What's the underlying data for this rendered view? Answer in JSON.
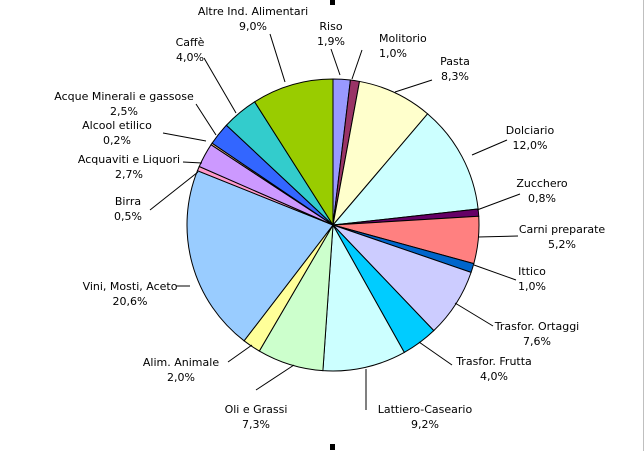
{
  "chart_data": {
    "type": "pie",
    "title": "",
    "start_angle_deg": 0,
    "direction": "clockwise",
    "slices": [
      {
        "label": "Riso",
        "value_label": "1,9%",
        "value": 1.9,
        "color": "#9999ff"
      },
      {
        "label": "Molitorio",
        "value_label": "1,0%",
        "value": 1.0,
        "color": "#993366"
      },
      {
        "label": "Pasta",
        "value_label": "8,3%",
        "value": 8.3,
        "color": "#ffffcc"
      },
      {
        "label": "Dolciario",
        "value_label": "12,0%",
        "value": 12.0,
        "color": "#ccffff"
      },
      {
        "label": "Zucchero",
        "value_label": "0,8%",
        "value": 0.8,
        "color": "#660066"
      },
      {
        "label": "Carni preparate",
        "value_label": "5,2%",
        "value": 5.2,
        "color": "#ff8080"
      },
      {
        "label": "Ittico",
        "value_label": "1,0%",
        "value": 1.0,
        "color": "#0066cc"
      },
      {
        "label": "Trasfor. Ortaggi",
        "value_label": "7,6%",
        "value": 7.6,
        "color": "#ccccff"
      },
      {
        "label": "Trasfor. Frutta",
        "value_label": "4,0%",
        "value": 4.0,
        "color": "#00ccff"
      },
      {
        "label": "Lattiero-Caseario",
        "value_label": "9,2%",
        "value": 9.2,
        "color": "#ccffff"
      },
      {
        "label": "Oli e Grassi",
        "value_label": "7,3%",
        "value": 7.3,
        "color": "#ccffcc"
      },
      {
        "label": "Alim. Animale",
        "value_label": "2,0%",
        "value": 2.0,
        "color": "#ffff99"
      },
      {
        "label": "Vini, Mosti, Aceto",
        "value_label": "20,6%",
        "value": 20.6,
        "color": "#99ccff"
      },
      {
        "label": "Birra",
        "value_label": "0,5%",
        "value": 0.5,
        "color": "#ff99cc"
      },
      {
        "label": "Acquaviti e Liquori",
        "value_label": "2,7%",
        "value": 2.7,
        "color": "#cc99ff"
      },
      {
        "label": "Alcool etilico",
        "value_label": "0,2%",
        "value": 0.2,
        "color": "#ffcc99"
      },
      {
        "label": "Acque Minerali e gassose",
        "value_label": "2,5%",
        "value": 2.5,
        "color": "#3366ff"
      },
      {
        "label": "Caffè",
        "value_label": "4,0%",
        "value": 4.0,
        "color": "#33cccc"
      },
      {
        "label": "Altre Ind. Alimentari",
        "value_label": "9,0%",
        "value": 9.0,
        "color": "#99cc00"
      }
    ]
  }
}
